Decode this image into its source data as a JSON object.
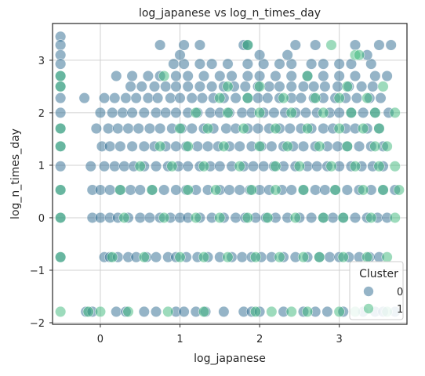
{
  "chart_data": {
    "type": "scatter",
    "title": "log_japanese vs log_n_times_day",
    "xlabel": "log_japanese",
    "ylabel": "log_n_times_day",
    "xlim": [
      -0.6,
      3.85
    ],
    "ylim": [
      -2.03,
      3.7
    ],
    "xticks": [
      0,
      1,
      2,
      3
    ],
    "xtick_labels": [
      "0",
      "1",
      "2",
      "3"
    ],
    "yticks": [
      -2,
      -1,
      0,
      1,
      2,
      3
    ],
    "ytick_labels": [
      "−2",
      "−1",
      "0",
      "1",
      "2",
      "3"
    ],
    "grid": true,
    "legend": {
      "title": "Cluster",
      "placement": "lower right",
      "entries": [
        "0",
        "1"
      ]
    },
    "point_alpha": 0.5,
    "y_levels": [
      -1.79,
      -0.75,
      0.0,
      0.53,
      0.98,
      1.36,
      1.7,
      2.0,
      2.28,
      2.5,
      2.7,
      2.93,
      3.1,
      3.29,
      3.45
    ],
    "series": [
      {
        "name": "0",
        "color": "#2c6a8f",
        "x": [
          -0.5,
          -0.5,
          -0.5,
          -0.5,
          -0.5,
          -0.5,
          -0.5,
          -0.5,
          -0.5,
          -0.5,
          -0.5,
          -0.5,
          -0.5,
          -0.5,
          -0.18,
          -0.1,
          0.2,
          0.32,
          0.55,
          0.7,
          0.95,
          1.05,
          1.2,
          1.32,
          1.55,
          1.8,
          1.9,
          2.0,
          2.3,
          2.55,
          2.7,
          2.85,
          3.05,
          3.3,
          3.45,
          3.55,
          3.7,
          0.05,
          0.12,
          0.22,
          0.35,
          0.45,
          0.58,
          0.7,
          0.85,
          0.95,
          1.08,
          1.22,
          1.35,
          1.5,
          1.65,
          1.78,
          1.9,
          2.02,
          2.15,
          2.3,
          2.45,
          2.6,
          2.75,
          2.88,
          3.0,
          3.12,
          3.25,
          3.38,
          3.5,
          -0.1,
          0.0,
          0.12,
          0.22,
          0.35,
          0.5,
          0.62,
          0.75,
          0.88,
          1.0,
          1.1,
          1.25,
          1.4,
          1.55,
          1.7,
          1.82,
          1.95,
          2.08,
          2.2,
          2.35,
          2.5,
          2.65,
          2.8,
          2.92,
          3.05,
          3.2,
          3.35,
          3.48,
          3.6,
          -0.1,
          0.0,
          0.12,
          0.25,
          0.38,
          0.5,
          0.65,
          0.8,
          0.95,
          1.08,
          1.2,
          1.35,
          1.5,
          1.62,
          1.75,
          1.88,
          2.0,
          2.12,
          2.28,
          2.4,
          2.55,
          2.7,
          2.82,
          2.95,
          3.1,
          3.25,
          3.4,
          3.55,
          3.7,
          -0.12,
          0.05,
          0.18,
          0.3,
          0.42,
          0.55,
          0.7,
          0.85,
          0.98,
          1.1,
          1.25,
          1.38,
          1.5,
          1.65,
          1.8,
          1.92,
          2.05,
          2.18,
          2.3,
          2.45,
          2.6,
          2.72,
          2.85,
          3.0,
          3.15,
          3.28,
          3.42,
          3.55,
          0.02,
          0.12,
          0.25,
          0.4,
          0.55,
          0.68,
          0.82,
          0.95,
          1.08,
          1.22,
          1.35,
          1.48,
          1.62,
          1.75,
          1.9,
          2.02,
          2.15,
          2.3,
          2.42,
          2.55,
          2.7,
          2.85,
          2.98,
          3.1,
          3.25,
          3.4,
          3.55,
          -0.05,
          0.1,
          0.22,
          0.35,
          0.48,
          0.62,
          0.75,
          0.9,
          1.02,
          1.15,
          1.3,
          1.42,
          1.58,
          1.7,
          1.85,
          1.98,
          2.12,
          2.25,
          2.38,
          2.52,
          2.65,
          2.8,
          2.92,
          3.08,
          3.2,
          3.35,
          3.5,
          0.0,
          0.15,
          0.28,
          0.4,
          0.55,
          0.7,
          0.82,
          0.95,
          1.1,
          1.22,
          1.38,
          1.5,
          1.62,
          1.78,
          1.9,
          2.05,
          2.18,
          2.32,
          2.45,
          2.58,
          2.72,
          2.88,
          3.0,
          3.15,
          3.3,
          3.45,
          3.62,
          -0.2,
          0.05,
          0.18,
          0.32,
          0.45,
          0.6,
          0.72,
          0.88,
          1.0,
          1.15,
          1.28,
          1.42,
          1.55,
          1.7,
          1.85,
          1.98,
          2.1,
          2.25,
          2.4,
          2.52,
          2.68,
          2.8,
          2.95,
          3.08,
          3.22,
          3.38,
          3.52,
          0.38,
          0.52,
          0.68,
          0.82,
          0.95,
          1.1,
          1.25,
          1.4,
          1.55,
          1.68,
          1.82,
          1.98,
          2.12,
          2.25,
          2.4,
          2.55,
          2.68,
          2.82,
          2.98,
          3.12,
          3.28,
          3.42,
          0.2,
          0.4,
          0.6,
          0.75,
          0.95,
          1.1,
          1.3,
          1.5,
          1.65,
          1.85,
          2.0,
          2.2,
          2.4,
          2.6,
          2.8,
          3.0,
          3.2,
          3.45,
          3.6,
          0.92,
          1.05,
          1.25,
          1.4,
          1.6,
          1.85,
          2.05,
          2.25,
          2.4,
          2.65,
          2.8,
          3.0,
          3.15,
          3.4,
          0.75,
          1.0,
          1.05,
          1.25,
          1.8,
          1.85,
          2.0,
          2.35,
          2.45,
          2.7,
          3.2,
          3.35,
          3.5,
          3.65
        ],
        "y": [
          3.45,
          3.29,
          3.1,
          2.93,
          2.7,
          2.5,
          2.28,
          2.0,
          1.7,
          1.36,
          0.98,
          0.53,
          0.0,
          -0.75,
          -1.79,
          -1.79,
          -1.79,
          -1.79,
          -1.79,
          -1.79,
          -1.79,
          -1.79,
          -1.79,
          -1.79,
          -1.79,
          -1.79,
          -1.79,
          -1.79,
          -1.79,
          -1.79,
          -1.79,
          -1.79,
          -1.79,
          -1.79,
          -1.79,
          -1.79,
          -1.79,
          -0.75,
          -0.75,
          -0.75,
          -0.75,
          -0.75,
          -0.75,
          -0.75,
          -0.75,
          -0.75,
          -0.75,
          -0.75,
          -0.75,
          -0.75,
          -0.75,
          -0.75,
          -0.75,
          -0.75,
          -0.75,
          -0.75,
          -0.75,
          -0.75,
          -0.75,
          -0.75,
          -0.75,
          -0.75,
          -0.75,
          -0.75,
          -0.75,
          0.0,
          0.0,
          0.0,
          0.0,
          0.0,
          0.0,
          0.0,
          0.0,
          0.0,
          0.0,
          0.0,
          0.0,
          0.0,
          0.0,
          0.0,
          0.0,
          0.0,
          0.0,
          0.0,
          0.0,
          0.0,
          0.0,
          0.0,
          0.0,
          0.0,
          0.0,
          0.0,
          0.0,
          0.0,
          0.53,
          0.53,
          0.53,
          0.53,
          0.53,
          0.53,
          0.53,
          0.53,
          0.53,
          0.53,
          0.53,
          0.53,
          0.53,
          0.53,
          0.53,
          0.53,
          0.53,
          0.53,
          0.53,
          0.53,
          0.53,
          0.53,
          0.53,
          0.53,
          0.53,
          0.53,
          0.53,
          0.53,
          0.53,
          0.98,
          0.98,
          0.98,
          0.98,
          0.98,
          0.98,
          0.98,
          0.98,
          0.98,
          0.98,
          0.98,
          0.98,
          0.98,
          0.98,
          0.98,
          0.98,
          0.98,
          0.98,
          0.98,
          0.98,
          0.98,
          0.98,
          0.98,
          0.98,
          0.98,
          0.98,
          0.98,
          0.98,
          1.36,
          1.36,
          1.36,
          1.36,
          1.36,
          1.36,
          1.36,
          1.36,
          1.36,
          1.36,
          1.36,
          1.36,
          1.36,
          1.36,
          1.36,
          1.36,
          1.36,
          1.36,
          1.36,
          1.36,
          1.36,
          1.36,
          1.36,
          1.36,
          1.36,
          1.36,
          1.36,
          1.7,
          1.7,
          1.7,
          1.7,
          1.7,
          1.7,
          1.7,
          1.7,
          1.7,
          1.7,
          1.7,
          1.7,
          1.7,
          1.7,
          1.7,
          1.7,
          1.7,
          1.7,
          1.7,
          1.7,
          1.7,
          1.7,
          1.7,
          1.7,
          1.7,
          1.7,
          1.7,
          2.0,
          2.0,
          2.0,
          2.0,
          2.0,
          2.0,
          2.0,
          2.0,
          2.0,
          2.0,
          2.0,
          2.0,
          2.0,
          2.0,
          2.0,
          2.0,
          2.0,
          2.0,
          2.0,
          2.0,
          2.0,
          2.0,
          2.0,
          2.0,
          2.0,
          2.0,
          2.0,
          2.28,
          2.28,
          2.28,
          2.28,
          2.28,
          2.28,
          2.28,
          2.28,
          2.28,
          2.28,
          2.28,
          2.28,
          2.28,
          2.28,
          2.28,
          2.28,
          2.28,
          2.28,
          2.28,
          2.28,
          2.28,
          2.28,
          2.28,
          2.28,
          2.28,
          2.28,
          2.28,
          2.5,
          2.5,
          2.5,
          2.5,
          2.5,
          2.5,
          2.5,
          2.5,
          2.5,
          2.5,
          2.5,
          2.5,
          2.5,
          2.5,
          2.5,
          2.5,
          2.5,
          2.5,
          2.5,
          2.5,
          2.5,
          2.5,
          2.7,
          2.7,
          2.7,
          2.7,
          2.7,
          2.7,
          2.7,
          2.7,
          2.7,
          2.7,
          2.7,
          2.7,
          2.7,
          2.7,
          2.7,
          2.7,
          2.7,
          2.7,
          2.7,
          2.93,
          2.93,
          2.93,
          2.93,
          2.93,
          2.93,
          2.93,
          2.93,
          2.93,
          2.93,
          2.93,
          2.93,
          2.93,
          2.93,
          3.29,
          3.1,
          3.29,
          3.29,
          3.29,
          3.29,
          3.1,
          3.1,
          3.29,
          3.29,
          3.29,
          3.1,
          3.29,
          3.29
        ]
      },
      {
        "name": "1",
        "color": "#3cb77a",
        "x": [
          -0.5,
          -0.5,
          -0.5,
          -0.5,
          -0.5,
          -0.5,
          -0.5,
          -0.5,
          -0.15,
          0.0,
          0.35,
          0.85,
          1.3,
          1.95,
          2.15,
          2.4,
          2.6,
          3.0,
          3.2,
          3.6,
          0.15,
          0.55,
          1.0,
          1.3,
          1.6,
          1.95,
          2.25,
          2.55,
          2.75,
          3.05,
          3.35,
          3.6,
          0.3,
          0.8,
          1.2,
          1.5,
          1.85,
          2.1,
          2.45,
          2.8,
          3.05,
          3.4,
          3.7,
          0.25,
          0.65,
          1.1,
          1.45,
          1.9,
          2.2,
          2.55,
          2.95,
          3.3,
          3.55,
          3.75,
          0.5,
          0.9,
          1.3,
          1.75,
          2.2,
          2.5,
          2.9,
          3.2,
          3.5,
          3.7,
          0.75,
          1.1,
          1.55,
          2.0,
          2.35,
          2.75,
          3.1,
          3.45,
          3.6,
          1.0,
          1.35,
          1.8,
          2.2,
          2.6,
          3.0,
          3.3,
          3.5,
          1.2,
          1.6,
          2.0,
          2.4,
          2.8,
          3.15,
          3.45,
          3.7,
          1.5,
          1.85,
          2.3,
          2.7,
          3.0,
          3.35,
          0.8,
          1.6,
          2.0,
          2.6,
          3.1,
          3.55,
          1.85,
          2.9,
          3.2,
          3.25
        ],
        "y": [
          2.7,
          2.5,
          1.7,
          1.36,
          0.53,
          0.0,
          -0.75,
          -1.79,
          -1.79,
          -1.79,
          -1.79,
          -1.79,
          -1.79,
          -1.79,
          -1.79,
          -1.79,
          -1.79,
          -1.79,
          -1.79,
          -1.79,
          -0.75,
          -0.75,
          -0.75,
          -0.75,
          -0.75,
          -0.75,
          -0.75,
          -0.75,
          -0.75,
          -0.75,
          -0.75,
          -0.75,
          0.0,
          0.0,
          0.0,
          0.0,
          0.0,
          0.0,
          0.0,
          0.0,
          0.0,
          0.0,
          0.0,
          0.53,
          0.53,
          0.53,
          0.53,
          0.53,
          0.53,
          0.53,
          0.53,
          0.53,
          0.53,
          0.53,
          0.98,
          0.98,
          0.98,
          0.98,
          0.98,
          0.98,
          0.98,
          0.98,
          0.98,
          0.98,
          1.36,
          1.36,
          1.36,
          1.36,
          1.36,
          1.36,
          1.36,
          1.36,
          1.36,
          1.7,
          1.7,
          1.7,
          1.7,
          1.7,
          1.7,
          1.7,
          1.7,
          2.0,
          2.0,
          2.0,
          2.0,
          2.0,
          2.0,
          2.0,
          2.0,
          2.28,
          2.28,
          2.28,
          2.28,
          2.28,
          2.28,
          2.7,
          2.5,
          2.5,
          2.7,
          2.5,
          2.5,
          3.29,
          3.29,
          3.1,
          3.1
        ]
      }
    ]
  }
}
